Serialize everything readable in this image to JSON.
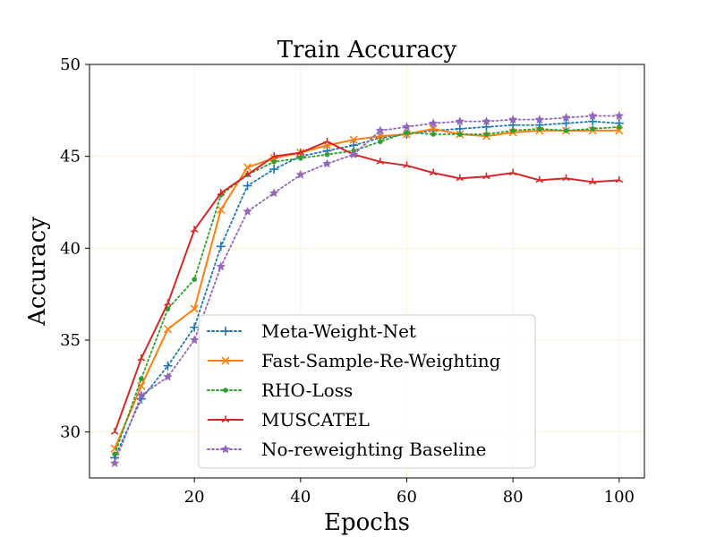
{
  "chart_data": {
    "type": "line",
    "title": "Train Accuracy",
    "xlabel": "Epochs",
    "ylabel": "Accuracy",
    "xlim": [
      0.25,
      104.75
    ],
    "ylim": [
      27.5,
      50
    ],
    "xticks": [
      20,
      40,
      60,
      80,
      100
    ],
    "yticks": [
      30,
      35,
      40,
      45,
      50
    ],
    "grid": true,
    "legend_position": "lower-center",
    "x": [
      5,
      10,
      15,
      20,
      25,
      30,
      35,
      40,
      45,
      50,
      55,
      60,
      65,
      70,
      75,
      80,
      85,
      90,
      95,
      100
    ],
    "series": [
      {
        "name": "Meta-Weight-Net",
        "color": "#1f77b4",
        "linestyle": "dotted",
        "marker": "plus",
        "values": [
          28.6,
          31.8,
          33.6,
          35.7,
          40.1,
          43.4,
          44.3,
          45.0,
          45.3,
          45.6,
          46.0,
          46.2,
          46.4,
          46.5,
          46.6,
          46.7,
          46.7,
          46.8,
          46.9,
          46.8
        ]
      },
      {
        "name": "Fast-Sample-Re-Weighting",
        "color": "#ff7f0e",
        "linestyle": "solid",
        "marker": "x",
        "values": [
          29.1,
          32.5,
          35.6,
          36.7,
          42.1,
          44.4,
          44.9,
          45.2,
          45.6,
          45.9,
          46.1,
          46.2,
          46.5,
          46.2,
          46.1,
          46.3,
          46.4,
          46.4,
          46.4,
          46.4
        ]
      },
      {
        "name": "RHO-Loss",
        "color": "#2ca02c",
        "linestyle": "dotted",
        "marker": "dot",
        "values": [
          28.8,
          32.9,
          36.7,
          38.3,
          42.9,
          44.0,
          44.7,
          44.9,
          45.1,
          45.3,
          45.8,
          46.3,
          46.2,
          46.2,
          46.2,
          46.4,
          46.5,
          46.4,
          46.5,
          46.6
        ]
      },
      {
        "name": "MUSCATEL",
        "color": "#d62728",
        "linestyle": "solid",
        "marker": "tri",
        "values": [
          30.0,
          34.0,
          37.0,
          41.0,
          43.0,
          44.0,
          45.0,
          45.2,
          45.8,
          45.1,
          44.7,
          44.5,
          44.1,
          43.8,
          43.9,
          44.1,
          43.7,
          43.8,
          43.6,
          43.7
        ]
      },
      {
        "name": "No-reweighting Baseline",
        "color": "#9467bd",
        "linestyle": "dotted",
        "marker": "star",
        "values": [
          28.3,
          32.0,
          33.0,
          35.0,
          39.0,
          42.0,
          43.0,
          44.0,
          44.6,
          45.1,
          46.4,
          46.6,
          46.8,
          46.9,
          46.9,
          47.0,
          47.0,
          47.1,
          47.2,
          47.2
        ]
      }
    ]
  }
}
